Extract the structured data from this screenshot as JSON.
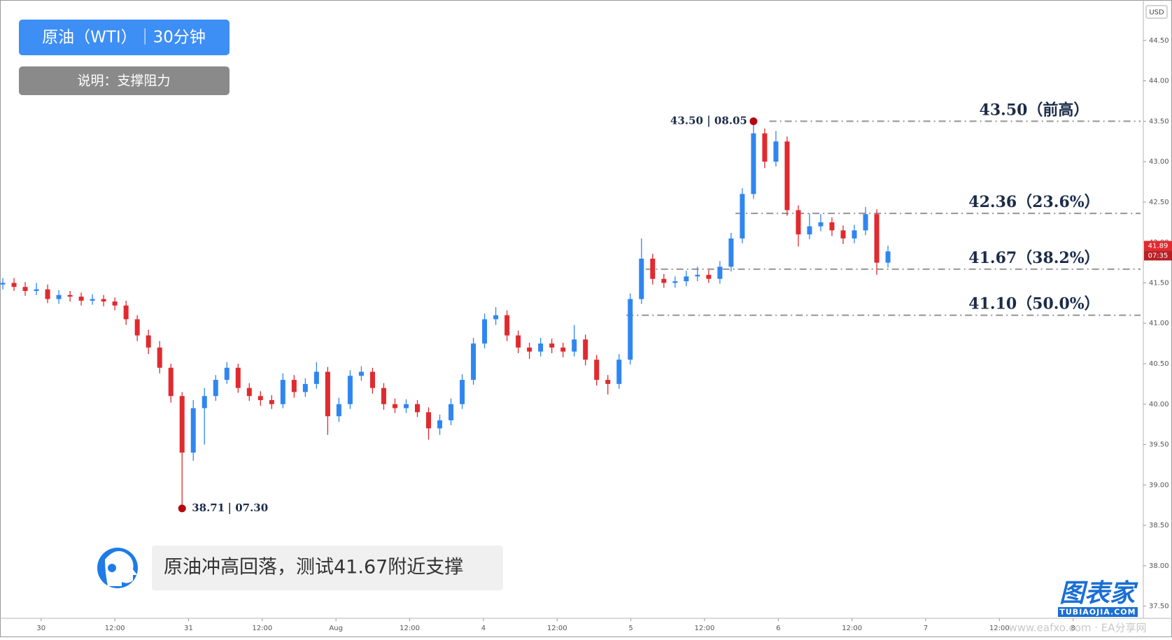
{
  "chart_data": {
    "type": "candlestick",
    "title": "原油（WTI）｜30分钟",
    "subtitle": "说明：支撑阻力",
    "note": "原油冲高回落，测试41.67附近支撑",
    "currency": "USD",
    "up_color": "#2f86f0",
    "down_color": "#e02a2f",
    "x": [
      -0.26,
      -0.184,
      -0.108,
      -0.032,
      0.044,
      0.12,
      0.196,
      0.272,
      0.348,
      0.424,
      0.5,
      0.576,
      0.652,
      0.728,
      0.804,
      0.88,
      0.956,
      1.032,
      1.108,
      1.184,
      1.26,
      1.336,
      1.412,
      1.488,
      1.564,
      1.64,
      1.716,
      1.792,
      1.868,
      1.944,
      2.02,
      2.096,
      2.172,
      2.248,
      2.324,
      2.4,
      2.476,
      2.552,
      2.628,
      2.704,
      2.78,
      2.856,
      2.932,
      3.008,
      3.084,
      3.16,
      3.236,
      3.312,
      3.388,
      3.464,
      3.54,
      3.616,
      3.692,
      3.768,
      3.844,
      3.92,
      3.996,
      4.072,
      4.148,
      4.224,
      4.3,
      4.376,
      4.452,
      4.528,
      4.604,
      4.68,
      4.756,
      4.832,
      4.908,
      4.984,
      5.06,
      5.136,
      5.212,
      5.288,
      5.364,
      5.44,
      5.516,
      5.592,
      5.668,
      5.744
    ],
    "open": [
      41.48,
      41.5,
      41.45,
      41.4,
      41.42,
      41.3,
      41.35,
      41.33,
      41.28,
      41.3,
      41.27,
      41.22,
      41.05,
      40.85,
      40.7,
      40.45,
      40.1,
      39.4,
      39.95,
      40.1,
      40.3,
      40.45,
      40.2,
      40.1,
      40.05,
      40.0,
      40.3,
      40.15,
      40.25,
      40.4,
      39.85,
      40.0,
      40.35,
      40.4,
      40.2,
      40.0,
      39.95,
      40.0,
      39.9,
      39.7,
      39.8,
      40.0,
      40.3,
      40.75,
      41.05,
      41.1,
      40.85,
      40.7,
      40.65,
      40.75,
      40.7,
      40.65,
      40.8,
      40.55,
      40.3,
      40.25,
      40.55,
      41.3,
      41.8,
      41.55,
      41.5,
      41.52,
      41.58,
      41.6,
      41.55,
      41.7,
      42.05,
      42.6,
      43.35,
      43.0,
      43.25,
      42.4,
      42.1,
      42.2,
      42.25,
      42.15,
      42.05,
      42.15,
      42.35,
      41.75
    ],
    "high": [
      41.56,
      41.56,
      41.51,
      41.5,
      41.48,
      41.41,
      41.4,
      41.38,
      41.36,
      41.35,
      41.32,
      41.28,
      41.1,
      40.92,
      40.78,
      40.5,
      40.15,
      40.05,
      40.2,
      40.36,
      40.52,
      40.5,
      40.26,
      40.16,
      40.11,
      40.38,
      40.36,
      40.32,
      40.52,
      40.46,
      40.08,
      40.42,
      40.47,
      40.45,
      40.26,
      40.07,
      40.06,
      40.05,
      39.96,
      39.87,
      40.07,
      40.37,
      40.82,
      41.12,
      41.2,
      41.16,
      40.91,
      40.76,
      40.82,
      40.81,
      40.76,
      40.98,
      40.86,
      40.61,
      40.36,
      40.62,
      41.37,
      42.05,
      41.86,
      41.61,
      41.58,
      41.65,
      41.7,
      41.66,
      41.77,
      42.12,
      42.67,
      43.5,
      43.41,
      43.38,
      43.31,
      42.46,
      42.36,
      42.35,
      42.31,
      42.21,
      42.22,
      42.44,
      42.41,
      41.96
    ],
    "low": [
      41.42,
      41.4,
      41.34,
      41.35,
      41.25,
      41.24,
      41.27,
      41.22,
      41.23,
      41.21,
      41.16,
      40.98,
      40.78,
      40.62,
      40.38,
      40.02,
      38.71,
      39.3,
      39.5,
      40.04,
      40.25,
      40.14,
      40.04,
      39.98,
      39.94,
      39.95,
      40.08,
      40.09,
      40.19,
      39.62,
      39.78,
      39.94,
      40.29,
      40.13,
      39.93,
      39.89,
      39.89,
      39.84,
      39.56,
      39.62,
      39.74,
      39.94,
      40.24,
      40.69,
      40.98,
      40.78,
      40.63,
      40.56,
      40.59,
      40.63,
      40.58,
      40.59,
      40.48,
      40.23,
      40.12,
      40.19,
      40.49,
      41.24,
      41.48,
      41.44,
      41.44,
      41.46,
      41.52,
      41.5,
      41.49,
      41.64,
      41.99,
      42.54,
      42.92,
      42.94,
      42.33,
      41.95,
      42.04,
      42.14,
      42.08,
      41.98,
      41.99,
      42.09,
      41.6,
      41.69
    ],
    "close": [
      41.5,
      41.45,
      41.4,
      41.42,
      41.3,
      41.35,
      41.33,
      41.28,
      41.3,
      41.27,
      41.22,
      41.05,
      40.85,
      40.7,
      40.45,
      40.1,
      39.4,
      39.95,
      40.1,
      40.3,
      40.45,
      40.2,
      40.1,
      40.05,
      40.0,
      40.3,
      40.15,
      40.25,
      40.4,
      39.85,
      40.0,
      40.35,
      40.4,
      40.2,
      40.0,
      39.95,
      40.0,
      39.9,
      39.7,
      39.8,
      40.0,
      40.3,
      40.75,
      41.05,
      41.1,
      40.85,
      40.7,
      40.65,
      40.75,
      40.7,
      40.65,
      40.8,
      40.55,
      40.3,
      40.25,
      40.55,
      41.3,
      41.8,
      41.55,
      41.5,
      41.52,
      41.58,
      41.6,
      41.55,
      41.7,
      42.05,
      42.6,
      43.35,
      43.0,
      43.25,
      42.4,
      42.1,
      42.2,
      42.25,
      42.15,
      42.05,
      42.15,
      42.35,
      41.75,
      41.89
    ],
    "xlim": [
      -0.279,
      7.476
    ],
    "ylim": [
      37.35,
      45.0
    ],
    "xticks": [
      {
        "value": 0,
        "label": "30"
      },
      {
        "value": 0.5,
        "label": "12:00"
      },
      {
        "value": 1,
        "label": "31"
      },
      {
        "value": 1.5,
        "label": "12:00"
      },
      {
        "value": 2,
        "label": "Aug"
      },
      {
        "value": 2.5,
        "label": "12:00"
      },
      {
        "value": 3,
        "label": "4"
      },
      {
        "value": 3.5,
        "label": "12:00"
      },
      {
        "value": 4,
        "label": "5"
      },
      {
        "value": 4.5,
        "label": "12:00"
      },
      {
        "value": 5,
        "label": "6"
      },
      {
        "value": 5.5,
        "label": "12:00"
      },
      {
        "value": 6,
        "label": "7"
      },
      {
        "value": 6.5,
        "label": "12:00"
      },
      {
        "value": 7,
        "label": "8"
      }
    ],
    "yticks": [
      {
        "value": 37.5,
        "label": "37.50"
      },
      {
        "value": 38,
        "label": "38.00"
      },
      {
        "value": 38.5,
        "label": "38.50"
      },
      {
        "value": 39,
        "label": "39.00"
      },
      {
        "value": 39.5,
        "label": "39.50"
      },
      {
        "value": 40,
        "label": "40.00"
      },
      {
        "value": 40.5,
        "label": "40.50"
      },
      {
        "value": 41,
        "label": "41.00"
      },
      {
        "value": 41.5,
        "label": "41.50"
      },
      {
        "value": 42,
        "label": "42.00"
      },
      {
        "value": 42.5,
        "label": "42.50"
      },
      {
        "value": 43,
        "label": "43.00"
      },
      {
        "value": 43.5,
        "label": "43.50"
      },
      {
        "value": 44,
        "label": "44.00"
      },
      {
        "value": 44.5,
        "label": "44.50"
      }
    ],
    "levels": [
      {
        "value": 43.5,
        "label": "43.50（前高）"
      },
      {
        "value": 42.36,
        "label": "42.36（23.6%）"
      },
      {
        "value": 41.67,
        "label": "41.67（38.2%）"
      },
      {
        "value": 41.1,
        "label": "41.10（50.0%）"
      }
    ],
    "annotations": [
      {
        "value": 43.5,
        "label": "43.50",
        "time": "08.05"
      },
      {
        "value": 38.71,
        "label": "38.71",
        "time": "07.30"
      }
    ],
    "last_price": {
      "value": 41.89,
      "time": "07:35"
    }
  },
  "logo": {
    "name": "图表家",
    "site": "TUBIAOJIA.COM"
  },
  "watermark": "www.eafxo.com · EA分享网"
}
